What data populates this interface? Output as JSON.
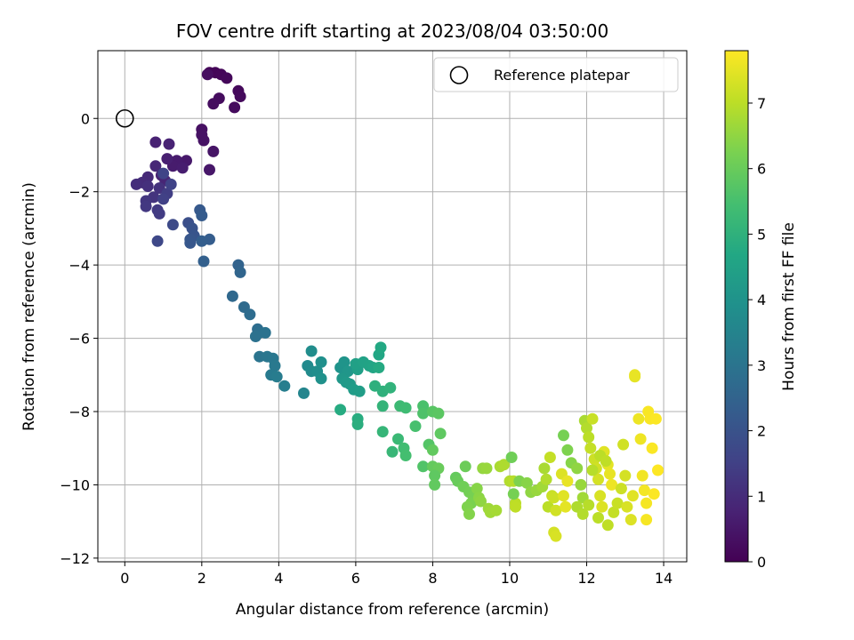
{
  "chart_data": {
    "type": "scatter",
    "title": "FOV centre drift starting at 2023/08/04 03:50:00",
    "xlabel": "Angular distance from reference (arcmin)",
    "ylabel": "Rotation from reference (arcmin)",
    "xlim": [
      -0.7,
      14.6
    ],
    "ylim": [
      -12.1,
      1.85
    ],
    "xticks": [
      0,
      2,
      4,
      6,
      8,
      10,
      12,
      14
    ],
    "xtick_labels": [
      "0",
      "2",
      "4",
      "6",
      "8",
      "10",
      "12",
      "14"
    ],
    "yticks": [
      0,
      -2,
      -4,
      -6,
      -8,
      -10,
      -12
    ],
    "ytick_labels": [
      "0",
      "−2",
      "−4",
      "−6",
      "−8",
      "−10",
      "−12"
    ],
    "grid": true,
    "legend": {
      "location": "upper right",
      "label": "Reference platepar"
    },
    "reference_point": {
      "x": 0,
      "y": 0
    },
    "colorbar": {
      "label": "Hours from first FF file",
      "colormap": "viridis",
      "range": [
        0,
        7.8
      ],
      "ticks": [
        0,
        1,
        2,
        3,
        4,
        5,
        6,
        7
      ],
      "tick_labels": [
        "0",
        "1",
        "2",
        "3",
        "4",
        "5",
        "6",
        "7"
      ]
    },
    "points": [
      [
        2.2,
        1.25,
        0.05
      ],
      [
        2.35,
        1.25,
        0.1
      ],
      [
        2.5,
        1.2,
        0.12
      ],
      [
        2.65,
        1.1,
        0.15
      ],
      [
        2.95,
        0.75,
        0.18
      ],
      [
        3.0,
        0.6,
        0.2
      ],
      [
        2.85,
        0.3,
        0.22
      ],
      [
        2.45,
        0.55,
        0.25
      ],
      [
        2.3,
        0.4,
        0.28
      ],
      [
        2.15,
        1.2,
        0.3
      ],
      [
        2.0,
        -0.3,
        0.35
      ],
      [
        2.0,
        -0.45,
        0.38
      ],
      [
        2.05,
        -0.6,
        0.4
      ],
      [
        2.3,
        -0.9,
        0.45
      ],
      [
        2.2,
        -1.4,
        0.5
      ],
      [
        1.6,
        -1.15,
        0.55
      ],
      [
        1.35,
        -1.15,
        0.6
      ],
      [
        1.25,
        -1.3,
        0.62
      ],
      [
        1.5,
        -1.35,
        0.65
      ],
      [
        1.1,
        -1.1,
        0.7
      ],
      [
        0.8,
        -0.65,
        0.75
      ],
      [
        1.15,
        -0.7,
        0.78
      ],
      [
        0.95,
        -1.55,
        0.8
      ],
      [
        1.05,
        -1.7,
        0.85
      ],
      [
        0.8,
        -1.3,
        0.9
      ],
      [
        0.6,
        -1.6,
        0.95
      ],
      [
        0.45,
        -1.75,
        1.0
      ],
      [
        0.3,
        -1.8,
        1.05
      ],
      [
        0.6,
        -1.85,
        1.1
      ],
      [
        0.9,
        -1.9,
        1.15
      ],
      [
        0.75,
        -2.15,
        1.2
      ],
      [
        0.55,
        -2.25,
        1.25
      ],
      [
        0.55,
        -2.4,
        1.3
      ],
      [
        0.85,
        -2.5,
        1.35
      ],
      [
        0.9,
        -2.6,
        1.4
      ],
      [
        1.1,
        -2.05,
        1.45
      ],
      [
        1.0,
        -2.2,
        1.5
      ],
      [
        1.2,
        -1.8,
        1.55
      ],
      [
        1.0,
        -1.5,
        1.6
      ],
      [
        0.85,
        -3.35,
        1.7
      ],
      [
        1.25,
        -2.9,
        1.75
      ],
      [
        1.65,
        -2.85,
        1.9
      ],
      [
        1.75,
        -3.0,
        2.0
      ],
      [
        1.8,
        -3.2,
        2.05
      ],
      [
        1.7,
        -3.3,
        2.1
      ],
      [
        1.7,
        -3.4,
        2.15
      ],
      [
        1.95,
        -2.5,
        2.2
      ],
      [
        2.0,
        -2.65,
        2.25
      ],
      [
        2.2,
        -3.3,
        2.3
      ],
      [
        2.0,
        -3.35,
        2.35
      ],
      [
        2.05,
        -3.9,
        2.4
      ],
      [
        2.95,
        -4.0,
        2.5
      ],
      [
        3.0,
        -4.2,
        2.55
      ],
      [
        2.8,
        -4.85,
        2.65
      ],
      [
        3.1,
        -5.15,
        2.7
      ],
      [
        3.25,
        -5.35,
        2.75
      ],
      [
        3.45,
        -5.75,
        2.8
      ],
      [
        3.5,
        -5.85,
        2.85
      ],
      [
        3.4,
        -5.95,
        2.9
      ],
      [
        3.65,
        -5.85,
        2.95
      ],
      [
        3.5,
        -6.5,
        3.0
      ],
      [
        3.7,
        -6.5,
        3.05
      ],
      [
        3.85,
        -6.55,
        3.1
      ],
      [
        3.9,
        -6.75,
        3.15
      ],
      [
        3.8,
        -7.0,
        3.2
      ],
      [
        3.95,
        -7.05,
        3.25
      ],
      [
        4.15,
        -7.3,
        3.3
      ],
      [
        4.65,
        -7.5,
        3.55
      ],
      [
        4.75,
        -6.75,
        3.7
      ],
      [
        4.85,
        -6.9,
        3.75
      ],
      [
        4.85,
        -6.35,
        3.8
      ],
      [
        5.0,
        -6.9,
        3.85
      ],
      [
        5.1,
        -6.65,
        3.9
      ],
      [
        5.1,
        -7.1,
        3.95
      ],
      [
        5.6,
        -6.8,
        4.0
      ],
      [
        5.7,
        -6.65,
        4.05
      ],
      [
        5.8,
        -6.9,
        4.1
      ],
      [
        5.65,
        -7.1,
        4.15
      ],
      [
        5.75,
        -7.2,
        4.2
      ],
      [
        5.85,
        -7.25,
        4.25
      ],
      [
        5.95,
        -7.4,
        4.3
      ],
      [
        6.1,
        -7.45,
        4.35
      ],
      [
        6.05,
        -6.85,
        4.4
      ],
      [
        6.0,
        -6.7,
        4.45
      ],
      [
        6.2,
        -6.65,
        4.5
      ],
      [
        6.35,
        -6.75,
        4.55
      ],
      [
        6.45,
        -6.8,
        4.6
      ],
      [
        6.6,
        -6.45,
        4.65
      ],
      [
        6.65,
        -6.25,
        4.7
      ],
      [
        6.6,
        -6.8,
        4.75
      ],
      [
        5.6,
        -7.95,
        4.8
      ],
      [
        6.05,
        -8.2,
        4.85
      ],
      [
        6.05,
        -8.35,
        4.9
      ],
      [
        6.5,
        -7.3,
        4.95
      ],
      [
        6.7,
        -7.45,
        5.0
      ],
      [
        6.9,
        -7.35,
        5.05
      ],
      [
        6.7,
        -7.85,
        5.1
      ],
      [
        6.7,
        -8.55,
        5.15
      ],
      [
        6.95,
        -9.1,
        5.2
      ],
      [
        7.1,
        -8.75,
        5.25
      ],
      [
        7.15,
        -7.85,
        5.3
      ],
      [
        7.3,
        -7.9,
        5.35
      ],
      [
        7.25,
        -9.0,
        5.4
      ],
      [
        7.3,
        -9.2,
        5.45
      ],
      [
        7.55,
        -8.4,
        5.5
      ],
      [
        7.75,
        -7.85,
        5.55
      ],
      [
        7.75,
        -8.05,
        5.6
      ],
      [
        7.75,
        -9.5,
        5.65
      ],
      [
        7.9,
        -8.9,
        5.7
      ],
      [
        8.0,
        -8.0,
        5.75
      ],
      [
        8.15,
        -8.05,
        5.8
      ],
      [
        8.2,
        -8.6,
        5.85
      ],
      [
        8.0,
        -9.05,
        5.9
      ],
      [
        8.0,
        -9.5,
        5.95
      ],
      [
        8.15,
        -9.55,
        6.0
      ],
      [
        8.05,
        -9.75,
        5.85
      ],
      [
        8.05,
        -10.0,
        5.9
      ],
      [
        8.6,
        -9.8,
        5.95
      ],
      [
        8.65,
        -9.9,
        6.0
      ],
      [
        8.85,
        -9.5,
        6.05
      ],
      [
        8.8,
        -10.05,
        6.1
      ],
      [
        8.95,
        -10.2,
        6.15
      ],
      [
        9.05,
        -10.3,
        6.2
      ],
      [
        9.0,
        -10.5,
        6.25
      ],
      [
        8.9,
        -10.6,
        6.3
      ],
      [
        8.95,
        -10.8,
        6.35
      ],
      [
        9.15,
        -10.1,
        6.4
      ],
      [
        9.2,
        -10.35,
        6.45
      ],
      [
        9.25,
        -10.45,
        6.5
      ],
      [
        9.3,
        -9.55,
        6.55
      ],
      [
        9.4,
        -9.55,
        6.6
      ],
      [
        9.45,
        -10.65,
        6.65
      ],
      [
        9.5,
        -10.75,
        6.7
      ],
      [
        9.65,
        -10.7,
        6.75
      ],
      [
        9.75,
        -9.5,
        6.8
      ],
      [
        9.85,
        -9.45,
        6.85
      ],
      [
        10.0,
        -9.9,
        6.9
      ],
      [
        10.1,
        -9.9,
        6.95
      ],
      [
        10.15,
        -10.5,
        7.0
      ],
      [
        10.15,
        -10.6,
        7.05
      ],
      [
        10.05,
        -9.25,
        6.1
      ],
      [
        10.1,
        -10.25,
        6.2
      ],
      [
        10.25,
        -9.9,
        6.3
      ],
      [
        10.45,
        -9.95,
        6.4
      ],
      [
        10.55,
        -10.2,
        6.5
      ],
      [
        10.7,
        -10.15,
        6.6
      ],
      [
        10.85,
        -10.05,
        6.7
      ],
      [
        10.9,
        -9.55,
        6.8
      ],
      [
        10.95,
        -9.85,
        6.9
      ],
      [
        11.0,
        -10.6,
        7.0
      ],
      [
        11.05,
        -9.25,
        7.1
      ],
      [
        11.1,
        -10.3,
        7.15
      ],
      [
        11.15,
        -10.35,
        7.2
      ],
      [
        11.2,
        -10.7,
        7.25
      ],
      [
        11.15,
        -11.3,
        7.3
      ],
      [
        11.2,
        -11.4,
        7.35
      ],
      [
        11.35,
        -9.7,
        7.4
      ],
      [
        11.4,
        -10.3,
        7.45
      ],
      [
        11.45,
        -10.6,
        7.5
      ],
      [
        11.5,
        -9.9,
        7.55
      ],
      [
        11.4,
        -8.65,
        6.2
      ],
      [
        11.5,
        -9.05,
        6.3
      ],
      [
        11.6,
        -9.4,
        6.4
      ],
      [
        11.75,
        -9.55,
        6.5
      ],
      [
        11.85,
        -10.0,
        6.6
      ],
      [
        11.9,
        -10.35,
        6.7
      ],
      [
        11.95,
        -8.25,
        6.8
      ],
      [
        12.0,
        -8.45,
        6.9
      ],
      [
        12.05,
        -8.7,
        7.0
      ],
      [
        12.1,
        -9.0,
        7.1
      ],
      [
        12.15,
        -8.2,
        7.15
      ],
      [
        12.2,
        -9.3,
        7.2
      ],
      [
        12.25,
        -9.55,
        7.25
      ],
      [
        12.3,
        -9.85,
        7.3
      ],
      [
        12.35,
        -10.3,
        7.35
      ],
      [
        12.4,
        -10.6,
        7.4
      ],
      [
        12.45,
        -9.1,
        7.45
      ],
      [
        12.55,
        -9.45,
        7.5
      ],
      [
        12.6,
        -9.7,
        7.55
      ],
      [
        12.65,
        -10.0,
        7.6
      ],
      [
        11.75,
        -10.6,
        6.85
      ],
      [
        11.9,
        -10.8,
        6.9
      ],
      [
        12.05,
        -10.55,
        6.95
      ],
      [
        12.3,
        -10.9,
        7.0
      ],
      [
        12.55,
        -11.1,
        7.05
      ],
      [
        12.7,
        -10.75,
        7.1
      ],
      [
        12.8,
        -10.5,
        7.15
      ],
      [
        12.9,
        -10.1,
        7.2
      ],
      [
        12.95,
        -8.9,
        7.25
      ],
      [
        13.0,
        -9.75,
        7.3
      ],
      [
        13.05,
        -10.6,
        7.35
      ],
      [
        13.15,
        -10.95,
        7.4
      ],
      [
        13.2,
        -10.3,
        7.45
      ],
      [
        13.25,
        -7.05,
        7.5
      ],
      [
        13.25,
        -7.0,
        7.55
      ],
      [
        13.35,
        -8.2,
        7.6
      ],
      [
        13.4,
        -8.75,
        7.62
      ],
      [
        13.45,
        -9.75,
        7.65
      ],
      [
        13.5,
        -10.15,
        7.68
      ],
      [
        13.55,
        -10.5,
        7.7
      ],
      [
        13.55,
        -10.95,
        7.72
      ],
      [
        13.6,
        -8.0,
        7.74
      ],
      [
        13.65,
        -8.2,
        7.75
      ],
      [
        13.7,
        -9.0,
        7.76
      ],
      [
        13.75,
        -10.25,
        7.77
      ],
      [
        13.8,
        -8.2,
        7.78
      ],
      [
        13.85,
        -9.6,
        7.8
      ],
      [
        12.35,
        -9.2,
        7.0
      ],
      [
        12.15,
        -9.6,
        6.95
      ],
      [
        12.5,
        -9.35,
        7.05
      ]
    ]
  }
}
